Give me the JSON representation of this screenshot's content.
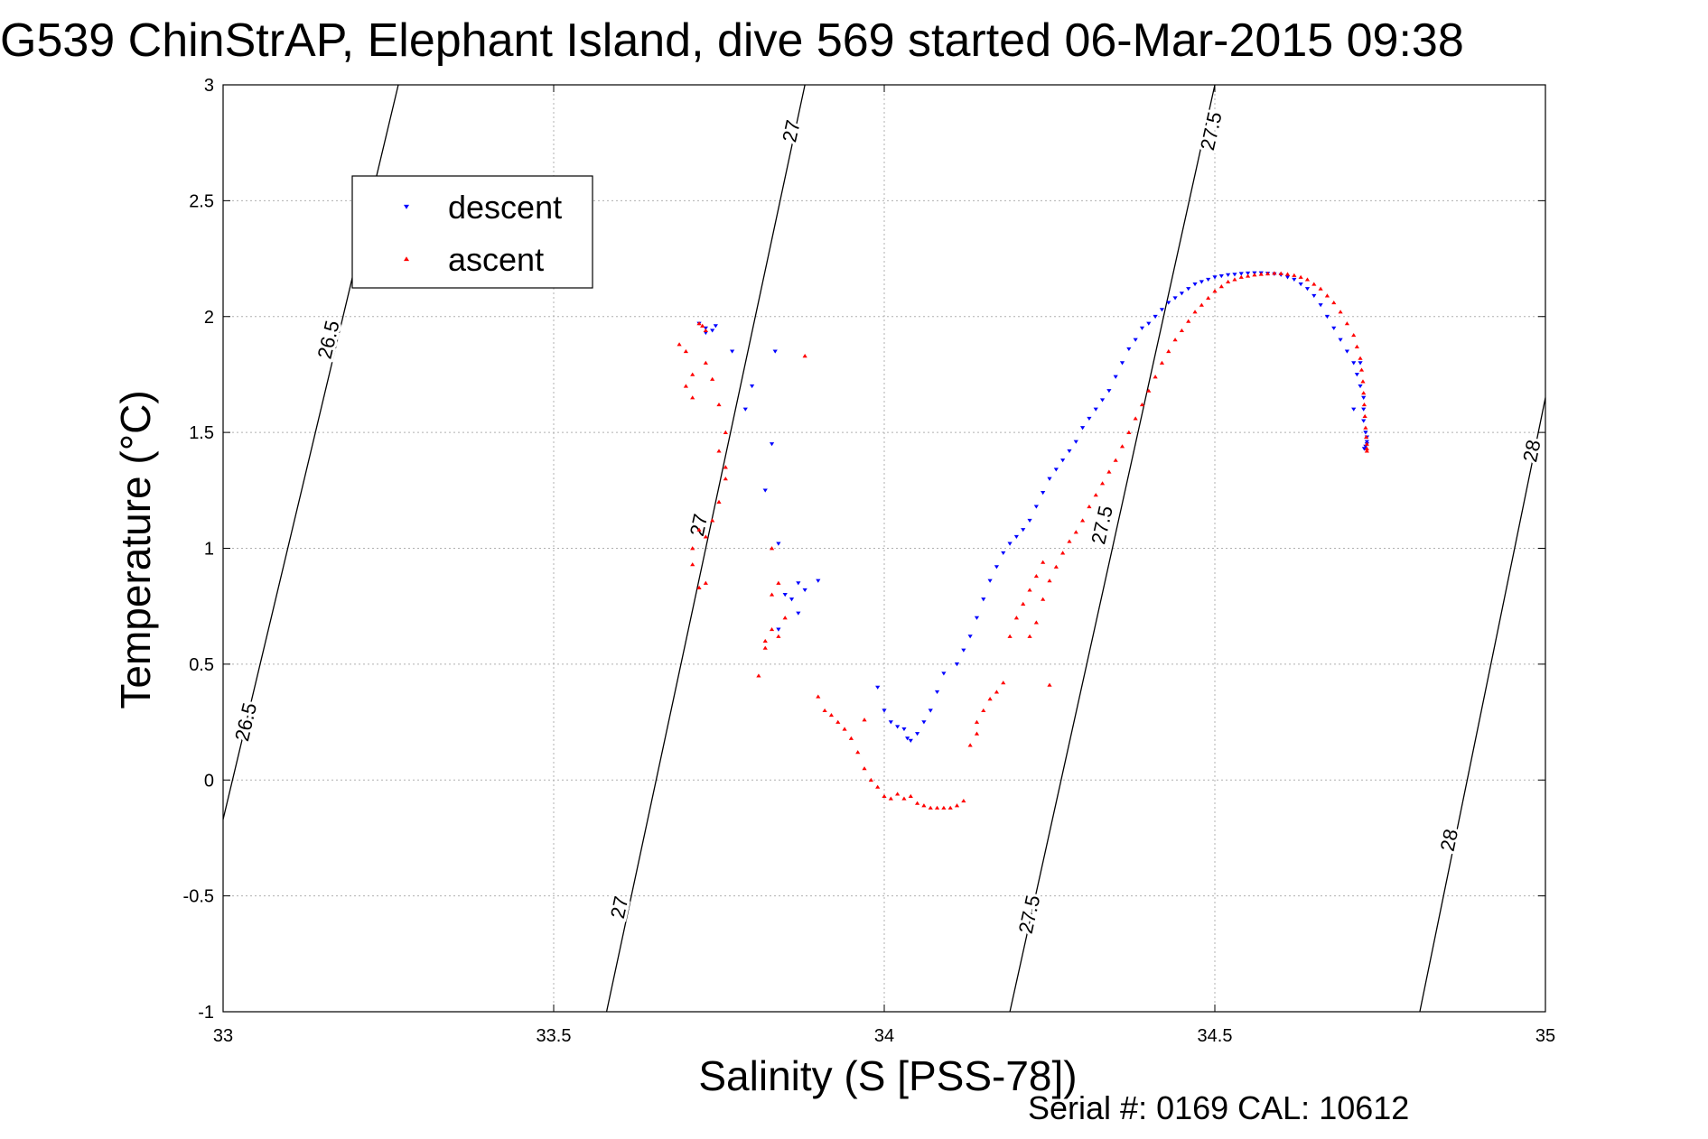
{
  "chart_data": {
    "type": "scatter",
    "title": "G539 ChinStrAP, Elephant Island, dive 569 started 06-Mar-2015 09:38",
    "xlabel": "Salinity (S [PSS-78])",
    "ylabel": "Temperature (°C)",
    "footer": "Serial #: 0169 CAL: 10612",
    "xlim": [
      33,
      35
    ],
    "ylim": [
      -1,
      3
    ],
    "x_ticks": [
      "33",
      "33.5",
      "34",
      "34.5",
      "35"
    ],
    "y_ticks": [
      "-1",
      "-0.5",
      "0",
      "0.5",
      "1",
      "1.5",
      "2",
      "2.5",
      "3"
    ],
    "grid": true,
    "legend_position": "top-left",
    "contours": [
      {
        "value": "26.5",
        "points": [
          [
            33.0,
            -0.17
          ],
          [
            33.265,
            3.0
          ]
        ],
        "labels": [
          {
            "x": 33.035,
            "y": 0.25
          },
          {
            "x": 33.16,
            "y": 1.9
          }
        ]
      },
      {
        "value": "27",
        "points": [
          [
            33.58,
            -1.0
          ],
          [
            33.88,
            3.0
          ]
        ],
        "labels": [
          {
            "x": 33.6,
            "y": -0.55
          },
          {
            "x": 33.72,
            "y": 1.1
          },
          {
            "x": 33.86,
            "y": 2.8
          }
        ]
      },
      {
        "value": "27.5",
        "points": [
          [
            34.19,
            -1.0
          ],
          [
            34.5,
            3.0
          ]
        ],
        "labels": [
          {
            "x": 34.22,
            "y": -0.58
          },
          {
            "x": 34.33,
            "y": 1.1
          },
          {
            "x": 34.495,
            "y": 2.8
          }
        ]
      },
      {
        "value": "28",
        "points": [
          [
            34.81,
            -1.0
          ],
          [
            35.0,
            1.65
          ]
        ],
        "labels": [
          {
            "x": 34.855,
            "y": -0.26
          },
          {
            "x": 34.98,
            "y": 1.42
          }
        ]
      }
    ],
    "series": [
      {
        "name": "descent",
        "color": "#0000ff",
        "marker": "triangle-down",
        "x": [
          33.73,
          33.74,
          33.745,
          33.72,
          33.73,
          33.77,
          33.8,
          33.83,
          33.79,
          33.82,
          33.84,
          33.87,
          33.88,
          33.86,
          33.87,
          33.9,
          33.85,
          33.84,
          33.99,
          34.0,
          34.01,
          34.02,
          34.03,
          34.035,
          34.04,
          34.05,
          34.06,
          34.07,
          34.08,
          34.09,
          34.11,
          34.12,
          34.13,
          34.14,
          34.15,
          34.16,
          34.17,
          34.18,
          34.19,
          34.2,
          34.21,
          34.22,
          34.23,
          34.24,
          34.25,
          34.26,
          34.27,
          34.28,
          34.29,
          34.3,
          34.31,
          34.32,
          34.33,
          34.34,
          34.35,
          34.36,
          34.37,
          34.38,
          34.39,
          34.4,
          34.41,
          34.42,
          34.43,
          34.44,
          34.45,
          34.46,
          34.47,
          34.48,
          34.49,
          34.5,
          34.51,
          34.52,
          34.53,
          34.54,
          34.55,
          34.56,
          34.57,
          34.58,
          34.59,
          34.6,
          34.61,
          34.62,
          34.63,
          34.64,
          34.65,
          34.66,
          34.67,
          34.68,
          34.69,
          34.7,
          34.71,
          34.715,
          34.72,
          34.725,
          34.725,
          34.725,
          34.728,
          34.73,
          34.73,
          34.73,
          34.728,
          34.726,
          34.72,
          34.71,
          33.835
        ],
        "y": [
          1.95,
          1.94,
          1.96,
          1.97,
          1.93,
          1.85,
          1.7,
          1.45,
          1.6,
          1.25,
          1.02,
          0.85,
          0.82,
          0.78,
          0.72,
          0.86,
          0.8,
          0.65,
          0.4,
          0.3,
          0.25,
          0.23,
          0.22,
          0.18,
          0.17,
          0.2,
          0.25,
          0.3,
          0.38,
          0.46,
          0.5,
          0.56,
          0.62,
          0.7,
          0.78,
          0.86,
          0.92,
          0.98,
          1.02,
          1.05,
          1.08,
          1.12,
          1.18,
          1.24,
          1.3,
          1.34,
          1.38,
          1.42,
          1.46,
          1.52,
          1.56,
          1.6,
          1.64,
          1.68,
          1.74,
          1.8,
          1.86,
          1.9,
          1.95,
          1.97,
          2.0,
          2.03,
          2.06,
          2.08,
          2.1,
          2.12,
          2.14,
          2.15,
          2.16,
          2.17,
          2.175,
          2.18,
          2.182,
          2.185,
          2.187,
          2.188,
          2.188,
          2.186,
          2.184,
          2.18,
          2.17,
          2.16,
          2.14,
          2.12,
          2.09,
          2.05,
          2.0,
          1.95,
          1.9,
          1.85,
          1.8,
          1.75,
          1.7,
          1.65,
          1.6,
          1.55,
          1.5,
          1.48,
          1.46,
          1.45,
          1.44,
          1.43,
          1.8,
          1.6,
          1.85
        ]
      },
      {
        "name": "ascent",
        "color": "#ff0000",
        "marker": "triangle-up",
        "x": [
          33.69,
          33.7,
          33.7,
          33.71,
          33.71,
          33.72,
          33.725,
          33.73,
          33.73,
          33.74,
          33.75,
          33.76,
          33.75,
          33.76,
          33.76,
          33.75,
          33.74,
          33.73,
          33.72,
          33.71,
          33.71,
          33.72,
          33.73,
          33.82,
          33.83,
          33.83,
          33.84,
          33.85,
          33.84,
          33.82,
          33.81,
          33.9,
          33.91,
          33.92,
          33.93,
          33.94,
          33.95,
          33.96,
          33.97,
          33.98,
          33.99,
          34.0,
          34.01,
          34.02,
          34.03,
          34.04,
          34.05,
          34.06,
          34.07,
          34.08,
          34.09,
          34.1,
          34.11,
          34.12,
          34.13,
          34.14,
          34.14,
          34.15,
          34.16,
          34.17,
          34.18,
          34.19,
          34.2,
          34.21,
          34.22,
          34.23,
          34.24,
          34.22,
          34.23,
          34.24,
          34.25,
          34.26,
          34.27,
          34.28,
          34.29,
          34.3,
          34.31,
          34.32,
          34.33,
          34.34,
          34.35,
          34.36,
          34.37,
          34.38,
          34.39,
          34.4,
          34.41,
          34.42,
          34.43,
          34.44,
          34.45,
          34.46,
          34.47,
          34.48,
          34.49,
          34.5,
          34.51,
          34.52,
          34.53,
          34.54,
          34.55,
          34.56,
          34.57,
          34.58,
          34.59,
          34.6,
          34.61,
          34.62,
          34.63,
          34.64,
          34.65,
          34.66,
          34.67,
          34.68,
          34.69,
          34.7,
          34.71,
          34.715,
          34.72,
          34.722,
          34.724,
          34.725,
          34.726,
          34.727,
          34.728,
          34.729,
          34.73,
          34.73,
          34.73,
          33.88,
          34.25,
          33.97,
          33.83
        ],
        "y": [
          1.88,
          1.85,
          1.7,
          1.75,
          1.65,
          1.97,
          1.96,
          1.94,
          1.8,
          1.73,
          1.62,
          1.5,
          1.42,
          1.35,
          1.3,
          1.2,
          1.12,
          1.05,
          1.08,
          1.0,
          0.93,
          0.83,
          0.85,
          0.6,
          0.65,
          0.8,
          0.85,
          0.7,
          0.62,
          0.57,
          0.45,
          0.36,
          0.3,
          0.28,
          0.25,
          0.22,
          0.18,
          0.12,
          0.05,
          0.0,
          -0.03,
          -0.07,
          -0.08,
          -0.06,
          -0.08,
          -0.07,
          -0.1,
          -0.11,
          -0.12,
          -0.12,
          -0.12,
          -0.12,
          -0.11,
          -0.09,
          0.15,
          0.2,
          0.25,
          0.3,
          0.35,
          0.38,
          0.42,
          0.62,
          0.7,
          0.76,
          0.82,
          0.88,
          0.94,
          0.62,
          0.68,
          0.78,
          0.86,
          0.92,
          0.98,
          1.03,
          1.07,
          1.12,
          1.18,
          1.23,
          1.28,
          1.33,
          1.38,
          1.44,
          1.5,
          1.56,
          1.62,
          1.68,
          1.74,
          1.8,
          1.85,
          1.9,
          1.94,
          1.98,
          2.02,
          2.05,
          2.08,
          2.11,
          2.13,
          2.15,
          2.16,
          2.17,
          2.175,
          2.18,
          2.183,
          2.185,
          2.187,
          2.186,
          2.183,
          2.178,
          2.17,
          2.16,
          2.14,
          2.12,
          2.09,
          2.06,
          2.02,
          1.97,
          1.92,
          1.87,
          1.82,
          1.77,
          1.72,
          1.67,
          1.62,
          1.57,
          1.52,
          1.48,
          1.45,
          1.43,
          1.42,
          1.83,
          0.41,
          0.26,
          1.0
        ]
      }
    ]
  }
}
